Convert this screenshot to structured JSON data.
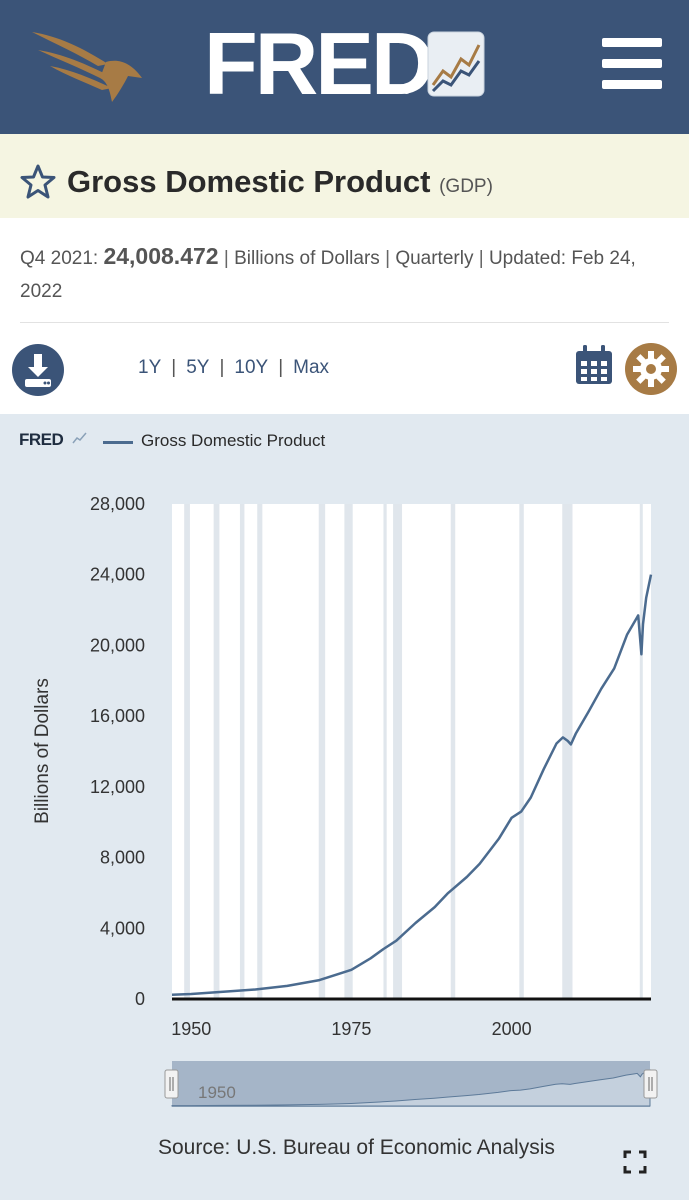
{
  "header": {
    "logo_text": "FRED",
    "registered": "®"
  },
  "series": {
    "title": "Gross Domestic Product",
    "id": "(GDP)",
    "period": "Q4 2021:",
    "value": "24,008.472",
    "units": "Billions of Dollars",
    "frequency": "Quarterly",
    "updated_label": "Updated:",
    "updated_date": "Feb 24, 2022",
    "separator": "|"
  },
  "toolbar": {
    "ranges": [
      "1Y",
      "5Y",
      "10Y",
      "Max"
    ]
  },
  "chart_header": {
    "brand": "FRED",
    "legend_label": "Gross Domestic Product"
  },
  "navigator": {
    "year_label": "1950"
  },
  "footer": {
    "source": "Source: U.S. Bureau of Economic Analysis"
  },
  "colors": {
    "header_bg": "#3b5478",
    "title_bar_bg": "#f5f5e2",
    "accent_gold": "#a77b45",
    "chart_panel_bg": "#e1e9f0",
    "series_line": "#4b6b8f",
    "recession_band": "#e0e6ec"
  },
  "icons": [
    "eagle-logo-icon",
    "fred-chart-icon",
    "hamburger-menu-icon",
    "star-icon",
    "download-icon",
    "calendar-icon",
    "gear-icon",
    "fullscreen-icon"
  ],
  "chart_data": {
    "type": "line",
    "ylabel": "Billions of Dollars",
    "ylim": [
      0,
      28000
    ],
    "xlim": [
      1947,
      2021.75
    ],
    "yticks": [
      "0",
      "4,000",
      "8,000",
      "12,000",
      "16,000",
      "20,000",
      "24,000",
      "28,000"
    ],
    "xticks": [
      "1950",
      "1975",
      "2000"
    ],
    "grid": false,
    "legend": "top-left",
    "source": "Source: U.S. Bureau of Economic Analysis",
    "recessions": [
      [
        1948.9,
        1949.8
      ],
      [
        1953.5,
        1954.4
      ],
      [
        1957.6,
        1958.3
      ],
      [
        1960.3,
        1961.1
      ],
      [
        1969.9,
        1970.9
      ],
      [
        1973.9,
        1975.2
      ],
      [
        1980.0,
        1980.5
      ],
      [
        1981.5,
        1982.9
      ],
      [
        1990.5,
        1991.2
      ],
      [
        2001.2,
        2001.9
      ],
      [
        2007.9,
        2009.5
      ],
      [
        2020.0,
        2020.3
      ]
    ],
    "series": [
      {
        "name": "Gross Domestic Product",
        "x": [
          1947,
          1950,
          1955,
          1960,
          1965,
          1970,
          1973,
          1975,
          1978,
          1980,
          1982,
          1985,
          1988,
          1990,
          1993,
          1995,
          1998,
          2000,
          2001.5,
          2003,
          2005,
          2007,
          2008,
          2008.75,
          2009.25,
          2010,
          2012,
          2014,
          2016,
          2018,
          2019.75,
          2020.25,
          2020.5,
          2021,
          2021.75
        ],
        "y": [
          243,
          280,
          415,
          540,
          740,
          1070,
          1420,
          1650,
          2300,
          2830,
          3300,
          4300,
          5200,
          5960,
          6900,
          7640,
          9060,
          10250,
          10600,
          11400,
          13000,
          14450,
          14800,
          14600,
          14400,
          15000,
          16250,
          17550,
          18700,
          20600,
          21700,
          19500,
          21200,
          22700,
          24008
        ]
      }
    ]
  }
}
